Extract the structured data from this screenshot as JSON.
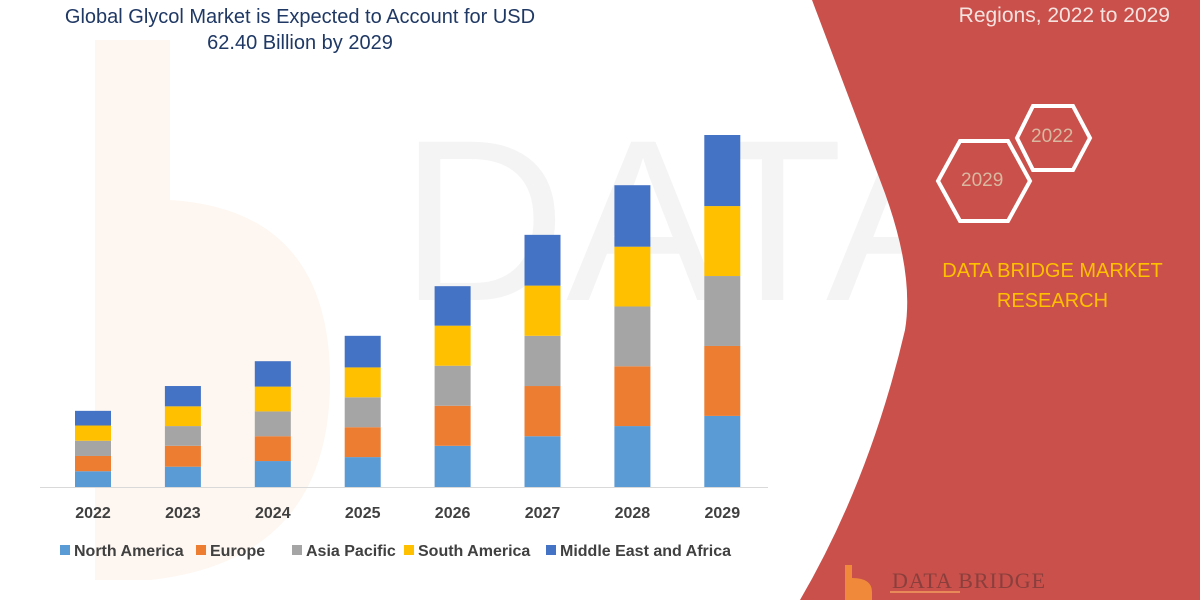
{
  "header": {
    "title": "Global Glycol Market is Expected to Account for USD 62.40 Billion by 2029",
    "right_title": "Regions, 2022 to 2029"
  },
  "badges": {
    "hex_start": "2022",
    "hex_end": "2029"
  },
  "brand": {
    "line1": "DATA BRIDGE MARKET",
    "line2": "RESEARCH",
    "logo_text": "DATA BRIDGE"
  },
  "colors": {
    "panel": "#c9504b",
    "brand_text": "#ffc000",
    "title": "#1f3864"
  },
  "chart_data": {
    "type": "bar",
    "stacked": true,
    "title": "Global Glycol Market is Expected to Account for USD 62.40 Billion by 2029",
    "xlabel": "",
    "ylabel": "",
    "y_axis_shown": false,
    "grid": false,
    "legend_position": "bottom",
    "categories": [
      "2022",
      "2023",
      "2024",
      "2025",
      "2026",
      "2027",
      "2028",
      "2029"
    ],
    "series": [
      {
        "name": "North America",
        "color": "#5b9bd5",
        "values": [
          2.8,
          3.6,
          4.6,
          5.3,
          7.3,
          9.0,
          10.8,
          12.6
        ]
      },
      {
        "name": "Europe",
        "color": "#ed7d31",
        "values": [
          2.7,
          3.7,
          4.4,
          5.3,
          7.1,
          8.9,
          10.6,
          12.4
        ]
      },
      {
        "name": "Asia Pacific",
        "color": "#a5a5a5",
        "values": [
          2.7,
          3.5,
          4.4,
          5.3,
          7.1,
          8.9,
          10.6,
          12.4
        ]
      },
      {
        "name": "South America",
        "color": "#ffc000",
        "values": [
          2.7,
          3.5,
          4.4,
          5.3,
          7.1,
          8.9,
          10.6,
          12.4
        ]
      },
      {
        "name": "Middle East and Africa",
        "color": "#4472c4",
        "values": [
          2.6,
          3.6,
          4.5,
          5.6,
          7.0,
          9.0,
          10.9,
          12.6
        ]
      }
    ]
  }
}
